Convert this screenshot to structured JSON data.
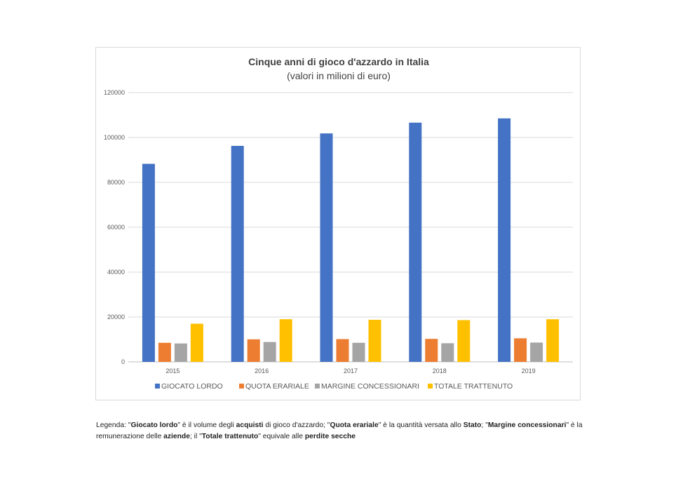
{
  "chart_data": {
    "type": "bar",
    "title": "Cinque anni di gioco d'azzardo in Italia",
    "subtitle": "(valori in milioni di euro)",
    "xlabel": "",
    "ylabel": "",
    "categories": [
      "2015",
      "2016",
      "2017",
      "2018",
      "2019"
    ],
    "ylim": [
      0,
      120000
    ],
    "yticks": [
      "0",
      "20000",
      "40000",
      "60000",
      "80000",
      "100000",
      "120000"
    ],
    "ytick_values": [
      0,
      20000,
      40000,
      60000,
      80000,
      100000,
      120000
    ],
    "grid": true,
    "legend_position": "bottom",
    "series": [
      {
        "name": "GIOCATO LORDO",
        "color": "#4472C4",
        "values": [
          88250,
          96250,
          101800,
          106600,
          108500
        ]
      },
      {
        "name": "QUOTA ERARIALE",
        "color": "#ED7D31",
        "values": [
          8500,
          10050,
          10150,
          10250,
          10500
        ]
      },
      {
        "name": "MARGINE CONCESSIONARI",
        "color": "#A5A5A5",
        "values": [
          8200,
          8850,
          8500,
          8300,
          8600
        ]
      },
      {
        "name": "TOTALE TRATTENUTO",
        "color": "#FFC000",
        "values": [
          17000,
          19000,
          18750,
          18600,
          19000
        ]
      }
    ]
  },
  "caption": {
    "parts": [
      {
        "text": "Legenda: \"",
        "bold": false
      },
      {
        "text": "Giocato lordo",
        "bold": true
      },
      {
        "text": "\" è il volume degli ",
        "bold": false
      },
      {
        "text": "acquisti",
        "bold": true
      },
      {
        "text": " di gioco d'azzardo; \"",
        "bold": false
      },
      {
        "text": "Quota erariale",
        "bold": true
      },
      {
        "text": "\" è la quantità versata allo ",
        "bold": false
      },
      {
        "text": "Stato",
        "bold": true
      },
      {
        "text": "; \"",
        "bold": false
      },
      {
        "text": "Margine concessionari",
        "bold": true
      },
      {
        "text": "\" è la remunerazione delle ",
        "bold": false
      },
      {
        "text": "aziende",
        "bold": true
      },
      {
        "text": "; il \"",
        "bold": false
      },
      {
        "text": "Totale trattenuto",
        "bold": true
      },
      {
        "text": "\" equivale alle ",
        "bold": false
      },
      {
        "text": "perdite secche",
        "bold": true
      }
    ]
  }
}
